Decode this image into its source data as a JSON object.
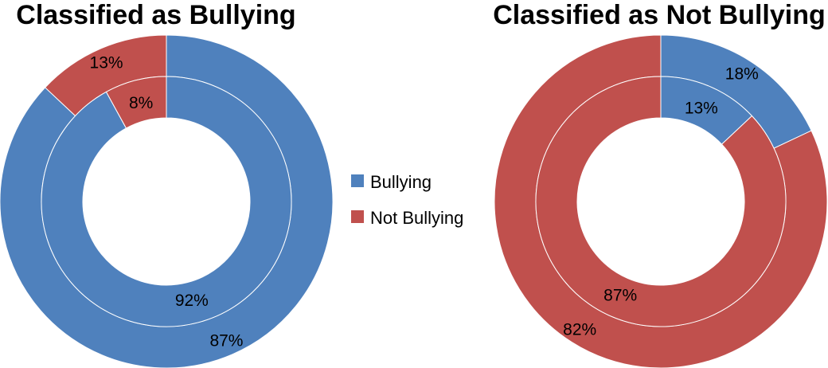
{
  "colors": {
    "bullying": "#4F81BD",
    "not_bullying": "#C0504D",
    "ring_separator": "#ffffff"
  },
  "legend": {
    "placement": "center",
    "entries": [
      {
        "label": "Bullying",
        "color_key": "bullying"
      },
      {
        "label": "Not Bullying",
        "color_key": "not_bullying"
      }
    ]
  },
  "chart_data": [
    {
      "type": "pie",
      "subtype": "doughnut",
      "title": "Classified as Bullying",
      "categories": [
        "Bullying",
        "Not Bullying"
      ],
      "rings": [
        {
          "ring": "outer",
          "values": [
            87,
            13
          ],
          "labels": [
            "87%",
            "13%"
          ]
        },
        {
          "ring": "inner",
          "values": [
            92,
            8
          ],
          "labels": [
            "92%",
            "8%"
          ]
        }
      ]
    },
    {
      "type": "pie",
      "subtype": "doughnut",
      "title": "Classified as Not Bullying",
      "categories": [
        "Bullying",
        "Not Bullying"
      ],
      "rings": [
        {
          "ring": "outer",
          "values": [
            18,
            82
          ],
          "labels": [
            "18%",
            "82%"
          ]
        },
        {
          "ring": "inner",
          "values": [
            13,
            87
          ],
          "labels": [
            "13%",
            "87%"
          ]
        }
      ]
    }
  ]
}
